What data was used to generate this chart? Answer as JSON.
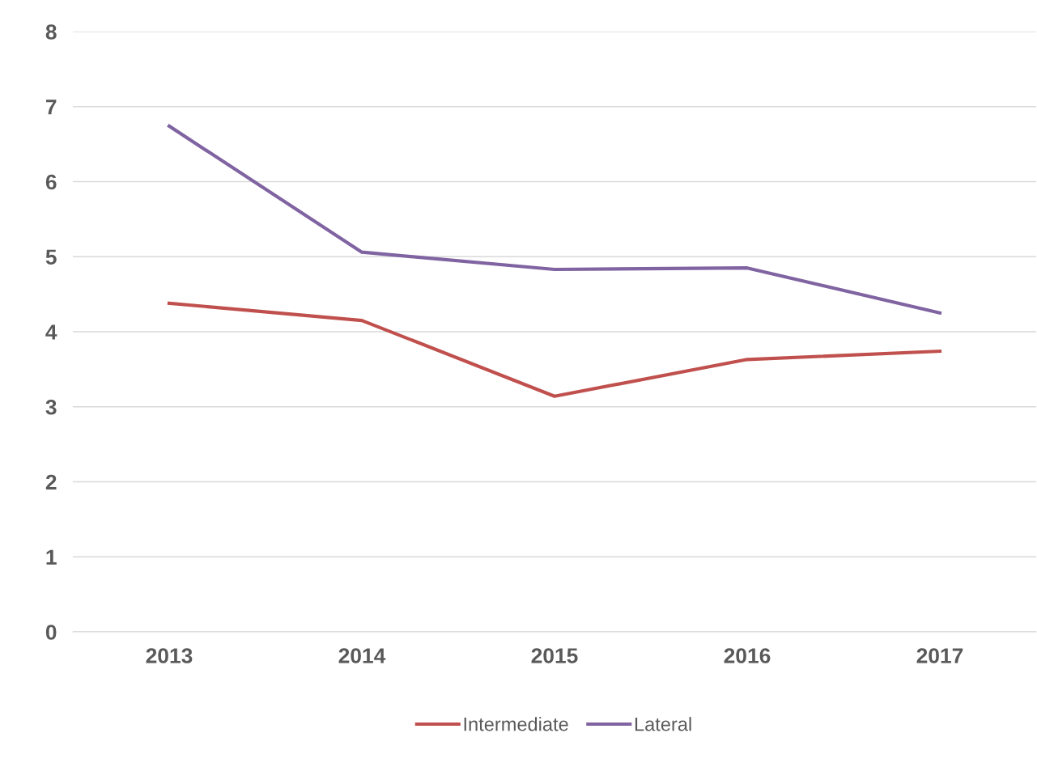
{
  "chart_data": {
    "type": "line",
    "categories": [
      "2013",
      "2014",
      "2015",
      "2016",
      "2017"
    ],
    "series": [
      {
        "name": "Intermediate",
        "color": "#c0504d",
        "values": [
          4.38,
          4.15,
          3.14,
          3.63,
          3.74
        ]
      },
      {
        "name": "Lateral",
        "color": "#8064a2",
        "values": [
          6.74,
          5.06,
          4.83,
          4.85,
          4.25
        ]
      }
    ],
    "ylim": [
      0,
      8
    ],
    "yticks": [
      0,
      1,
      2,
      3,
      4,
      5,
      6,
      7,
      8
    ],
    "grid": "y",
    "legend": "bottom",
    "marker": "none",
    "line_style": "solid"
  }
}
